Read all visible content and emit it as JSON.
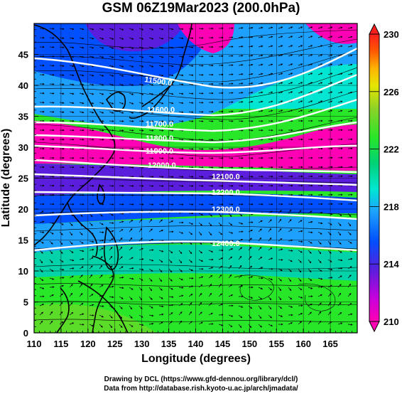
{
  "title": "GSM 06Z19Mar2023 (200.0hPa)",
  "x_axis": {
    "label": "Longitude (degrees)",
    "ticks": [
      "110",
      "115",
      "120",
      "125",
      "130",
      "135",
      "140",
      "145",
      "150",
      "155",
      "160",
      "165"
    ]
  },
  "y_axis": {
    "label": "Latitude  (degrees)",
    "ticks": [
      "0",
      "5",
      "10",
      "15",
      "20",
      "25",
      "30",
      "35",
      "40",
      "45"
    ]
  },
  "colorbar": {
    "labels": [
      "230",
      "226",
      "222",
      "218",
      "214",
      "210"
    ],
    "min": 210,
    "max": 230
  },
  "contours": [
    {
      "label": "11500.0"
    },
    {
      "label": "11600.0"
    },
    {
      "label": "11700.0"
    },
    {
      "label": "11800.0"
    },
    {
      "label": "11900.0"
    },
    {
      "label": "12000.0"
    },
    {
      "label": "12100.0"
    },
    {
      "label": "12200.0"
    },
    {
      "label": "12300.0"
    },
    {
      "label": "12400.0"
    }
  ],
  "credits": {
    "line1": "Drawing by DCL (https://www.gfd-dennou.org/library/dcl/)",
    "line2": "Data from http://database.rish.kyoto-u.ac.jp/arch/jmadata/"
  },
  "colors": {
    "cmap": [
      "#ff00b4",
      "#c800dc",
      "#5a1edc",
      "#0050ff",
      "#1ea0ff",
      "#00e6d2",
      "#00d278",
      "#28e628",
      "#8cd228",
      "#e6e600",
      "#ffb400",
      "#ff5a00",
      "#ff1e1e"
    ]
  }
}
